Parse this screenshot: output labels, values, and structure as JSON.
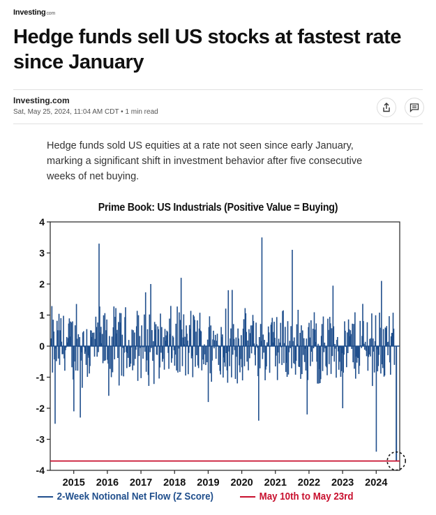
{
  "site": {
    "brand": "Investing",
    "brand_suffix": "com"
  },
  "article": {
    "title": "Hedge funds sell US stocks at fastest rate since January",
    "author": "Investing.com",
    "date": "Sat, May 25, 2024, 11:04 AM CDT",
    "read_time": "1 min read",
    "summary": "Hedge funds sold US equities at a rate not seen since early January, marking a significant shift in investment behavior after five consecutive weeks of net buying."
  },
  "colors": {
    "series": "#1f4e8c",
    "reference": "#c8102e",
    "text": "#111111"
  },
  "icons": {
    "share": "share-icon",
    "comments": "comment-icon"
  },
  "chart_data": {
    "type": "line",
    "title": "Prime Book: US Industrials (Positive Value = Buying)",
    "xlabel": "",
    "ylabel": "",
    "ylim": [
      -4,
      4
    ],
    "yticks": [
      "4",
      "3",
      "2",
      "1",
      "0",
      "-1",
      "-2",
      "-3",
      "-4"
    ],
    "xlim": [
      2014.3,
      2024.7
    ],
    "xticks": [
      "2015",
      "2016",
      "2017",
      "2018",
      "2019",
      "2020",
      "2021",
      "2022",
      "2023",
      "2024"
    ],
    "series": [
      {
        "name": "2-Week Notional Net Flow (Z Score)",
        "style": "bars-from-zero",
        "notable_points": [
          {
            "x": 2014.45,
            "y": -2.5
          },
          {
            "x": 2015.0,
            "y": -2.1
          },
          {
            "x": 2015.2,
            "y": -2.3
          },
          {
            "x": 2015.75,
            "y": 3.3
          },
          {
            "x": 2016.05,
            "y": -1.6
          },
          {
            "x": 2017.3,
            "y": 2.0
          },
          {
            "x": 2018.2,
            "y": 2.2
          },
          {
            "x": 2019.0,
            "y": -1.8
          },
          {
            "x": 2019.6,
            "y": 1.8
          },
          {
            "x": 2020.5,
            "y": -2.4
          },
          {
            "x": 2020.6,
            "y": 3.5
          },
          {
            "x": 2021.5,
            "y": 3.1
          },
          {
            "x": 2021.95,
            "y": -2.2
          },
          {
            "x": 2023.0,
            "y": -2.0
          },
          {
            "x": 2024.0,
            "y": -3.4
          },
          {
            "x": 2024.15,
            "y": 2.1
          },
          {
            "x": 2024.6,
            "y": -3.7
          }
        ]
      },
      {
        "name": "May 10th to May 23rd",
        "value": -3.7
      }
    ],
    "annotation": "dashed circle marking latest reading"
  }
}
